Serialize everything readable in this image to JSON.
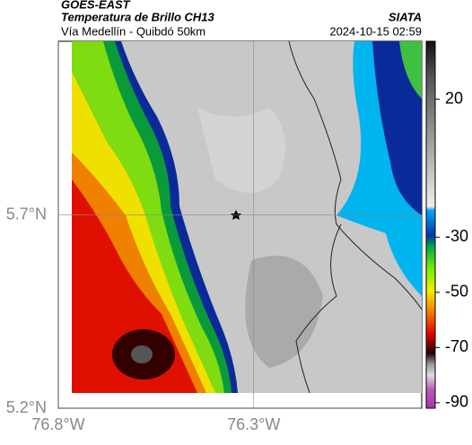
{
  "header": {
    "source": "GOES-EAST",
    "title": "Temperatura de Brillo CH13",
    "subtitle": "Vía Medellín - Quibdó 50km",
    "org": "SIATA",
    "timestamp": "2024-10-15 02:59"
  },
  "map": {
    "xlim": [
      -76.8,
      -75.87
    ],
    "ylim": [
      5.2,
      6.15
    ],
    "xticks": [
      {
        "value": -76.8,
        "label": "76.8°W"
      },
      {
        "value": -76.3,
        "label": "76.3°W"
      }
    ],
    "yticks": [
      {
        "value": 5.7,
        "label": "5.7°N"
      },
      {
        "value": 5.2,
        "label": "5.2°N"
      }
    ],
    "colorbar": {
      "range": [
        -92,
        41
      ],
      "ticks": [
        20,
        -30,
        -50,
        -70,
        -90
      ]
    }
  }
}
